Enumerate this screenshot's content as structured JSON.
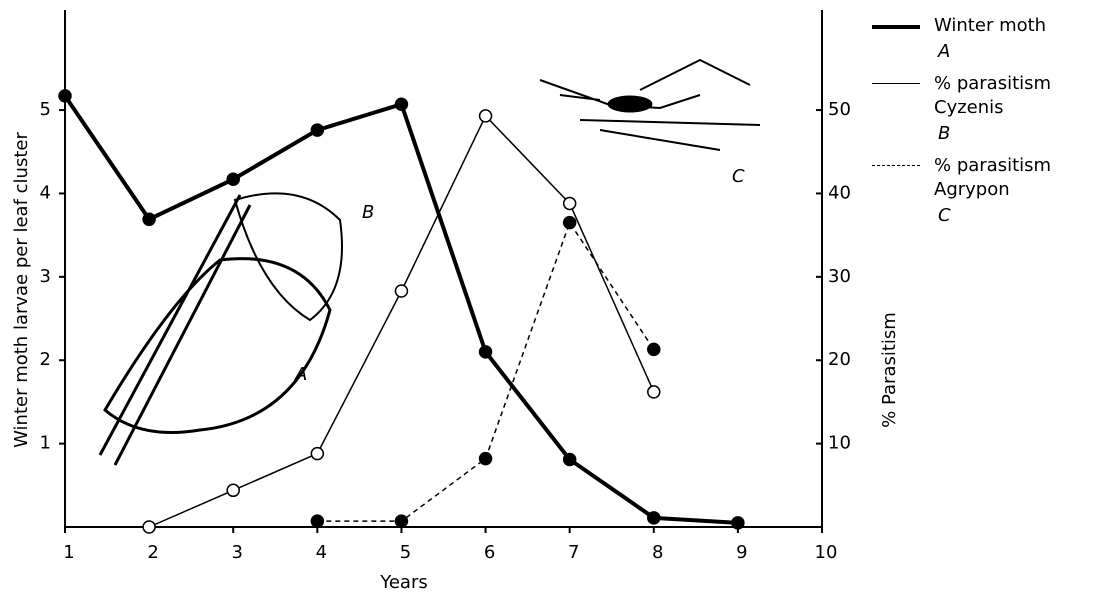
{
  "chart_data": {
    "type": "line",
    "x_label": "Years",
    "y_label": "Winter moth larvae per leaf cluster",
    "y2_label": "% Parasitism",
    "xlim": [
      1,
      10
    ],
    "xticks": [
      1,
      2,
      3,
      4,
      5,
      6,
      7,
      8,
      9,
      10
    ],
    "ylim": [
      0,
      6.2
    ],
    "yticks": [
      1,
      2,
      3,
      4,
      5
    ],
    "y2lim": [
      0,
      62
    ],
    "y2ticks": [
      10,
      20,
      30,
      40,
      50
    ],
    "annotations": [
      "A",
      "B",
      "C"
    ],
    "series": [
      {
        "name": "Winter moth",
        "symbol_label": "A",
        "color": "#000000",
        "line_width": 4,
        "dash": "none",
        "marker": "filled",
        "x": [
          1,
          2,
          3,
          4,
          5,
          6,
          7,
          8,
          9
        ],
        "values": [
          5.17,
          3.69,
          4.17,
          4.76,
          5.07,
          2.1,
          0.81,
          0.11,
          0.05
        ]
      },
      {
        "name": "% parasitism Cyzenis",
        "symbol_label": "B",
        "color": "#000000",
        "line_width": 1.5,
        "dash": "none",
        "marker": "open",
        "axis": "y2",
        "x": [
          2,
          3,
          4,
          5,
          6,
          7,
          8
        ],
        "values": [
          0,
          4.4,
          8.8,
          28.3,
          49.3,
          38.8,
          16.2
        ]
      },
      {
        "name": "% parasitism Agrypon",
        "symbol_label": "C",
        "color": "#000000",
        "line_width": 1.5,
        "dash": "5,4",
        "marker": "filled",
        "axis": "y2",
        "x": [
          4,
          5,
          6,
          7,
          8
        ],
        "values": [
          0.7,
          0.7,
          8.2,
          36.5,
          21.3
        ]
      }
    ]
  }
}
